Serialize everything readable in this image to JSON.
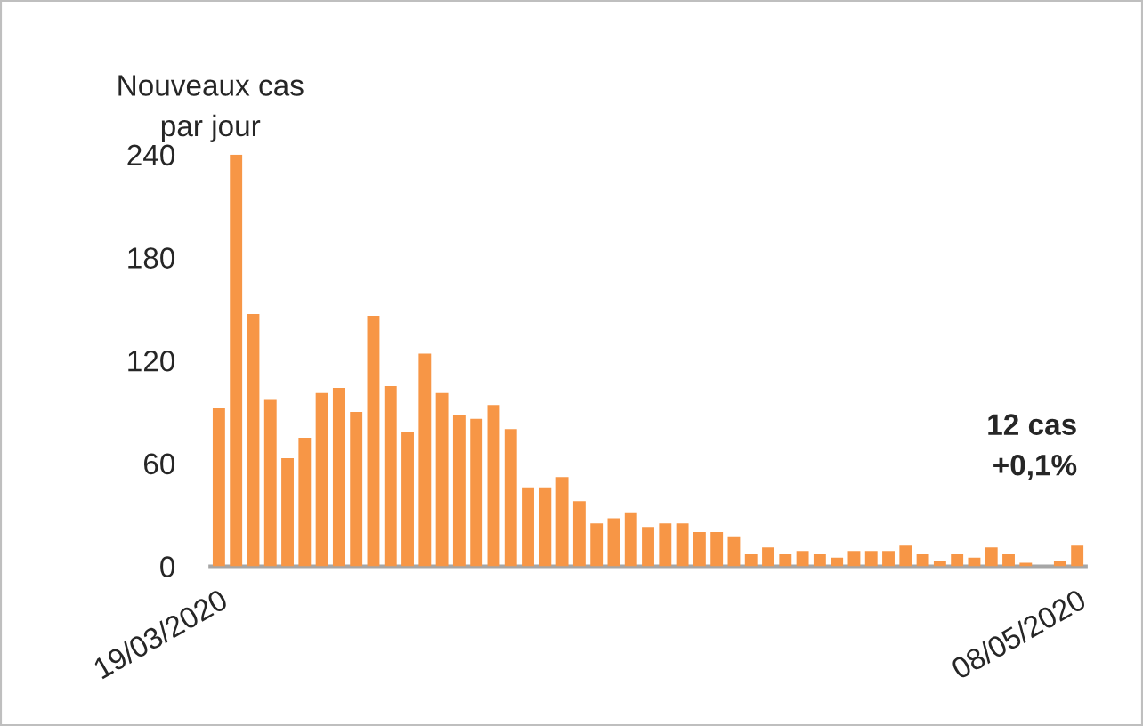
{
  "chart_data": {
    "type": "bar",
    "ylabel": "Nouveaux cas\npar jour",
    "categories": [
      "19/03/2020",
      null,
      null,
      null,
      null,
      null,
      null,
      null,
      null,
      null,
      null,
      null,
      null,
      null,
      null,
      null,
      null,
      null,
      null,
      null,
      null,
      null,
      null,
      null,
      null,
      null,
      null,
      null,
      null,
      null,
      null,
      null,
      null,
      null,
      null,
      null,
      null,
      null,
      null,
      null,
      null,
      null,
      null,
      null,
      null,
      null,
      null,
      null,
      null,
      null,
      "08/05/2020"
    ],
    "values": [
      92,
      240,
      147,
      97,
      63,
      75,
      101,
      104,
      90,
      146,
      105,
      78,
      124,
      101,
      88,
      86,
      94,
      80,
      46,
      46,
      52,
      38,
      25,
      28,
      31,
      23,
      25,
      25,
      20,
      20,
      17,
      7,
      11,
      7,
      9,
      7,
      5,
      9,
      9,
      9,
      12,
      7,
      3,
      7,
      5,
      11,
      7,
      2,
      0,
      3,
      12
    ],
    "color": "#f79646",
    "ylim": [
      0,
      240
    ],
    "yticks": [
      0,
      60,
      120,
      180,
      240
    ],
    "annotations": [
      {
        "text": "12 cas\n+0,1%",
        "x": "08/05/2020",
        "y": 12
      }
    ],
    "grid": false,
    "legend": false
  }
}
